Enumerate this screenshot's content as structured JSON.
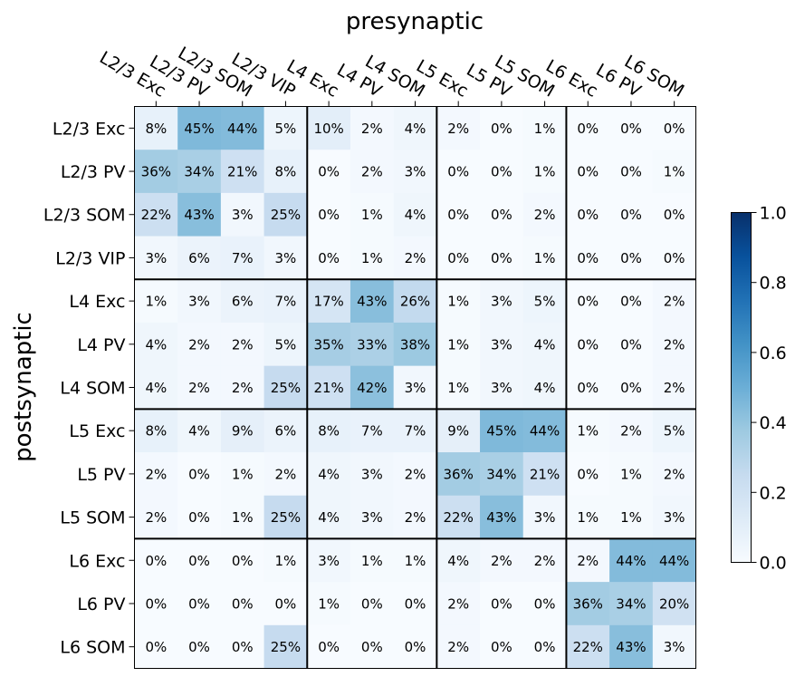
{
  "chart_data": {
    "type": "heatmap",
    "title": "",
    "xlabel": "presynaptic",
    "ylabel": "postsynaptic",
    "x_categories": [
      "L2/3 Exc",
      "L2/3 PV",
      "L2/3 SOM",
      "L2/3 VIP",
      "L4 Exc",
      "L4 PV",
      "L4 SOM",
      "L5 Exc",
      "L5 PV",
      "L5 SOM",
      "L6 Exc",
      "L6 PV",
      "L6 SOM"
    ],
    "y_categories": [
      "L2/3 Exc",
      "L2/3 PV",
      "L2/3 SOM",
      "L2/3 VIP",
      "L4 Exc",
      "L4 PV",
      "L4 SOM",
      "L5 Exc",
      "L5 PV",
      "L5 SOM",
      "L6 Exc",
      "L6 PV",
      "L6 SOM"
    ],
    "values": [
      [
        0.08,
        0.45,
        0.44,
        0.05,
        0.1,
        0.02,
        0.04,
        0.02,
        0.0,
        0.01,
        0.0,
        0.0,
        0.0
      ],
      [
        0.36,
        0.34,
        0.21,
        0.08,
        0.0,
        0.02,
        0.03,
        0.0,
        0.0,
        0.01,
        0.0,
        0.0,
        0.01
      ],
      [
        0.22,
        0.43,
        0.03,
        0.25,
        0.0,
        0.01,
        0.04,
        0.0,
        0.0,
        0.02,
        0.0,
        0.0,
        0.0
      ],
      [
        0.03,
        0.06,
        0.07,
        0.03,
        0.0,
        0.01,
        0.02,
        0.0,
        0.0,
        0.01,
        0.0,
        0.0,
        0.0
      ],
      [
        0.01,
        0.03,
        0.06,
        0.07,
        0.17,
        0.43,
        0.26,
        0.01,
        0.03,
        0.05,
        0.0,
        0.0,
        0.02
      ],
      [
        0.04,
        0.02,
        0.02,
        0.05,
        0.35,
        0.33,
        0.38,
        0.01,
        0.03,
        0.04,
        0.0,
        0.0,
        0.02
      ],
      [
        0.04,
        0.02,
        0.02,
        0.25,
        0.21,
        0.42,
        0.03,
        0.01,
        0.03,
        0.04,
        0.0,
        0.0,
        0.02
      ],
      [
        0.08,
        0.04,
        0.09,
        0.06,
        0.08,
        0.07,
        0.07,
        0.09,
        0.45,
        0.44,
        0.01,
        0.02,
        0.05
      ],
      [
        0.02,
        0.0,
        0.01,
        0.02,
        0.04,
        0.03,
        0.02,
        0.36,
        0.34,
        0.21,
        0.0,
        0.01,
        0.02
      ],
      [
        0.02,
        0.0,
        0.01,
        0.25,
        0.04,
        0.03,
        0.02,
        0.22,
        0.43,
        0.03,
        0.01,
        0.01,
        0.03
      ],
      [
        0.0,
        0.0,
        0.0,
        0.01,
        0.03,
        0.01,
        0.01,
        0.04,
        0.02,
        0.02,
        0.02,
        0.44,
        0.44
      ],
      [
        0.0,
        0.0,
        0.0,
        0.0,
        0.01,
        0.0,
        0.0,
        0.02,
        0.0,
        0.0,
        0.36,
        0.34,
        0.2
      ],
      [
        0.0,
        0.0,
        0.0,
        0.25,
        0.0,
        0.0,
        0.0,
        0.02,
        0.0,
        0.0,
        0.22,
        0.43,
        0.03
      ]
    ],
    "cell_labels": [
      [
        "8%",
        "45%",
        "44%",
        "5%",
        "10%",
        "2%",
        "4%",
        "2%",
        "0%",
        "1%",
        "0%",
        "0%",
        "0%"
      ],
      [
        "36%",
        "34%",
        "21%",
        "8%",
        "0%",
        "2%",
        "3%",
        "0%",
        "0%",
        "1%",
        "0%",
        "0%",
        "1%"
      ],
      [
        "22%",
        "43%",
        "3%",
        "25%",
        "0%",
        "1%",
        "4%",
        "0%",
        "0%",
        "2%",
        "0%",
        "0%",
        "0%"
      ],
      [
        "3%",
        "6%",
        "7%",
        "3%",
        "0%",
        "1%",
        "2%",
        "0%",
        "0%",
        "1%",
        "0%",
        "0%",
        "0%"
      ],
      [
        "1%",
        "3%",
        "6%",
        "7%",
        "17%",
        "43%",
        "26%",
        "1%",
        "3%",
        "5%",
        "0%",
        "0%",
        "2%"
      ],
      [
        "4%",
        "2%",
        "2%",
        "5%",
        "35%",
        "33%",
        "38%",
        "1%",
        "3%",
        "4%",
        "0%",
        "0%",
        "2%"
      ],
      [
        "4%",
        "2%",
        "2%",
        "25%",
        "21%",
        "42%",
        "3%",
        "1%",
        "3%",
        "4%",
        "0%",
        "0%",
        "2%"
      ],
      [
        "8%",
        "4%",
        "9%",
        "6%",
        "8%",
        "7%",
        "7%",
        "9%",
        "45%",
        "44%",
        "1%",
        "2%",
        "5%"
      ],
      [
        "2%",
        "0%",
        "1%",
        "2%",
        "4%",
        "3%",
        "2%",
        "36%",
        "34%",
        "21%",
        "0%",
        "1%",
        "2%"
      ],
      [
        "2%",
        "0%",
        "1%",
        "25%",
        "4%",
        "3%",
        "2%",
        "22%",
        "43%",
        "3%",
        "1%",
        "1%",
        "3%"
      ],
      [
        "0%",
        "0%",
        "0%",
        "1%",
        "3%",
        "1%",
        "1%",
        "4%",
        "2%",
        "2%",
        "2%",
        "44%",
        "44%"
      ],
      [
        "0%",
        "0%",
        "0%",
        "0%",
        "1%",
        "0%",
        "0%",
        "2%",
        "0%",
        "0%",
        "36%",
        "34%",
        "20%"
      ],
      [
        "0%",
        "0%",
        "0%",
        "25%",
        "0%",
        "0%",
        "0%",
        "2%",
        "0%",
        "0%",
        "22%",
        "43%",
        "3%"
      ]
    ],
    "group_boundaries": [
      4,
      7,
      10
    ],
    "colormap": "Blues",
    "vmin": 0.0,
    "vmax": 1.0,
    "colorbar_ticks": [
      "0.0",
      "0.2",
      "0.4",
      "0.6",
      "0.8",
      "1.0"
    ],
    "x_tick_position": "top",
    "grid": false
  }
}
